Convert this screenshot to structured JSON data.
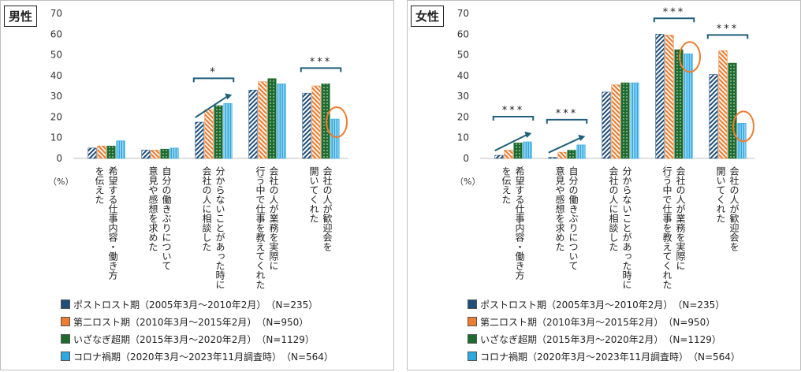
{
  "chart_data": [
    {
      "type": "bar",
      "panel_label": "男性",
      "ylim": [
        0,
        70
      ],
      "yticks": [
        "0",
        "10",
        "20",
        "30",
        "40",
        "50",
        "60",
        "70"
      ],
      "unit": "（%）",
      "categories": [
        [
          "希望する仕事内容・働き方",
          "を伝えた"
        ],
        [
          "自分の働きぶりについて",
          "意見や感想を求めた"
        ],
        [
          "分からないことがあった時に",
          "会社の人に相談した"
        ],
        [
          "会社の人が業務を実際に",
          "行う中で仕事を教えてくれた"
        ],
        [
          "会社の人が歓迎会を",
          "開いてくれた"
        ]
      ],
      "series": [
        {
          "name": "ポストロスト期（2005年3月～2010年2月）　（N=235）",
          "values": [
            5,
            4,
            17.5,
            33,
            31.5
          ]
        },
        {
          "name": "第二ロスト期（2010年3月～2015年2月）　（N=950）",
          "values": [
            6,
            4,
            23.5,
            37,
            35
          ]
        },
        {
          "name": "いざなぎ超期（2015年3月～2020年2月）　（N=1129）",
          "values": [
            6,
            4.5,
            25.5,
            38.5,
            36
          ]
        },
        {
          "name": "コロナ禍期（2020年3月～2023年11月調査時）　（N=564）",
          "values": [
            8.5,
            5,
            26.5,
            36,
            19
          ]
        }
      ],
      "significance": [
        {
          "category_index": 2,
          "label": "*",
          "arrow": true
        },
        {
          "category_index": 4,
          "label": "***",
          "arrow": false
        }
      ],
      "circled": [
        {
          "category_index": 4,
          "series_index": 3
        }
      ]
    },
    {
      "type": "bar",
      "panel_label": "女性",
      "ylim": [
        0,
        70
      ],
      "yticks": [
        "0",
        "10",
        "20",
        "30",
        "40",
        "50",
        "60",
        "70"
      ],
      "unit": "（%）",
      "categories": [
        [
          "希望する仕事内容・働き方",
          "を伝えた"
        ],
        [
          "自分の働きぶりについて",
          "意見や感想を求めた"
        ],
        [
          "分からないことがあった時に",
          "会社の人に相談した"
        ],
        [
          "会社の人が業務を実際に",
          "行う中で仕事を教えてくれた"
        ],
        [
          "会社の人が歓迎会を",
          "開いてくれた"
        ]
      ],
      "series": [
        {
          "name": "ポストロスト期（2005年3月～2010年2月）　（N=235）",
          "values": [
            1.5,
            0.5,
            32,
            60,
            40.5
          ]
        },
        {
          "name": "第二ロスト期（2010年3月～2015年2月）　（N=950）",
          "values": [
            4,
            3,
            35.5,
            59.5,
            52
          ]
        },
        {
          "name": "いざなぎ超期（2015年3月～2020年2月）　（N=1129）",
          "values": [
            7.5,
            4,
            36.5,
            52.5,
            46
          ]
        },
        {
          "name": "コロナ禍期（2020年3月～2023年11月調査時）　（N=564）",
          "values": [
            8,
            6.5,
            36.5,
            50.5,
            17
          ]
        }
      ],
      "significance": [
        {
          "category_index": 0,
          "label": "***",
          "arrow": true
        },
        {
          "category_index": 1,
          "label": "***",
          "arrow": true
        },
        {
          "category_index": 3,
          "label": "***",
          "arrow": false
        },
        {
          "category_index": 4,
          "label": "***",
          "arrow": false
        }
      ],
      "circled": [
        {
          "category_index": 3,
          "series_index": 3
        },
        {
          "category_index": 4,
          "series_index": 3
        }
      ]
    }
  ],
  "colors": {
    "series": [
      "#1f4e79",
      "#ed7d31",
      "#1e6b2e",
      "#2ea8e0"
    ],
    "significance": "#1f5f7a",
    "circle": "#ed7d31"
  }
}
